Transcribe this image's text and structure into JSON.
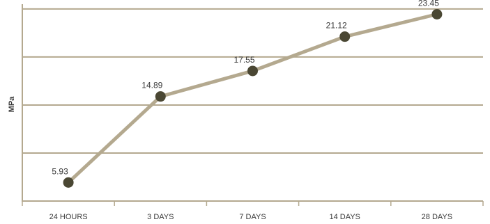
{
  "chart_data": {
    "type": "line",
    "title": "",
    "xlabel": "",
    "ylabel": "MPa",
    "categories": [
      "24 HOURS",
      "3 DAYS",
      "7 DAYS",
      "14 DAYS",
      "28 DAYS"
    ],
    "series": [
      {
        "values": [
          5.93,
          14.89,
          17.55,
          21.12,
          23.45
        ]
      }
    ],
    "data_labels": [
      "5.93",
      "14.89",
      "17.55",
      "21.12",
      "23.45"
    ],
    "ylim": [
      4,
      24.5
    ],
    "y_gridlines": [
      9,
      14,
      19,
      24
    ],
    "grid": true,
    "legend": "none",
    "colors": {
      "line": "#b4a98f",
      "marker": "#4a4733",
      "grid": "#b4a98f",
      "axis": "#b4a98f",
      "text": "#3a3a3a"
    }
  }
}
